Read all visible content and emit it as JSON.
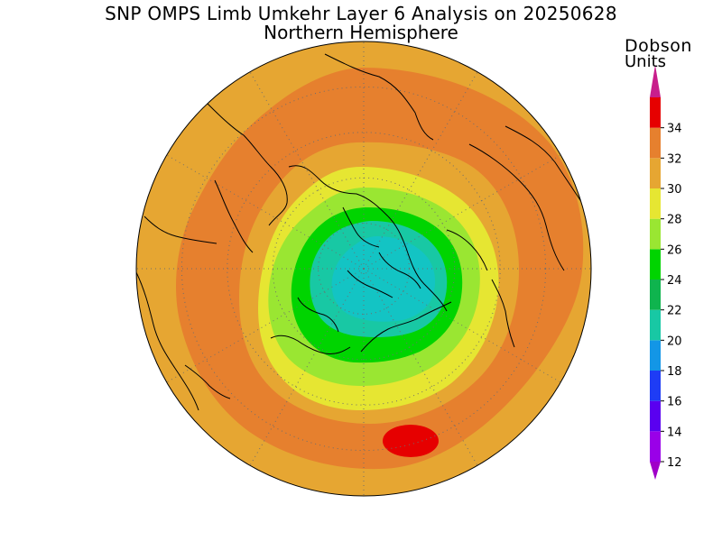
{
  "title": "SNP OMPS Limb Umkehr Layer 6 Analysis on 20250628",
  "subtitle": "Northern Hemisphere",
  "colorbar": {
    "label_line1": "Dobson",
    "label_line2": "Units",
    "ticks": [
      "12",
      "14",
      "16",
      "18",
      "20",
      "22",
      "24",
      "26",
      "28",
      "30",
      "32",
      "34"
    ],
    "bins": [
      {
        "min": 12,
        "max": 14,
        "color": "#9a00e8"
      },
      {
        "min": 14,
        "max": 16,
        "color": "#5a00f0"
      },
      {
        "min": 16,
        "max": 18,
        "color": "#1e3cf5"
      },
      {
        "min": 18,
        "max": 20,
        "color": "#1396e6"
      },
      {
        "min": 20,
        "max": 22,
        "color": "#18c8a4"
      },
      {
        "min": 22,
        "max": 24,
        "color": "#0fb44e"
      },
      {
        "min": 24,
        "max": 26,
        "color": "#00d400"
      },
      {
        "min": 26,
        "max": 28,
        "color": "#9ae632"
      },
      {
        "min": 28,
        "max": 30,
        "color": "#e6e632"
      },
      {
        "min": 30,
        "max": 32,
        "color": "#e6a632"
      },
      {
        "min": 32,
        "max": 34,
        "color": "#e6802e"
      },
      {
        "min": 34,
        "max": 36,
        "color": "#e60000"
      }
    ],
    "over_color": "#c81e8c",
    "under_color": "#a000c8"
  },
  "map": {
    "projection": "north-polar-stereographic",
    "background_color": "#ffffff",
    "graticule": "dotted",
    "coastline_color": "#000000"
  }
}
